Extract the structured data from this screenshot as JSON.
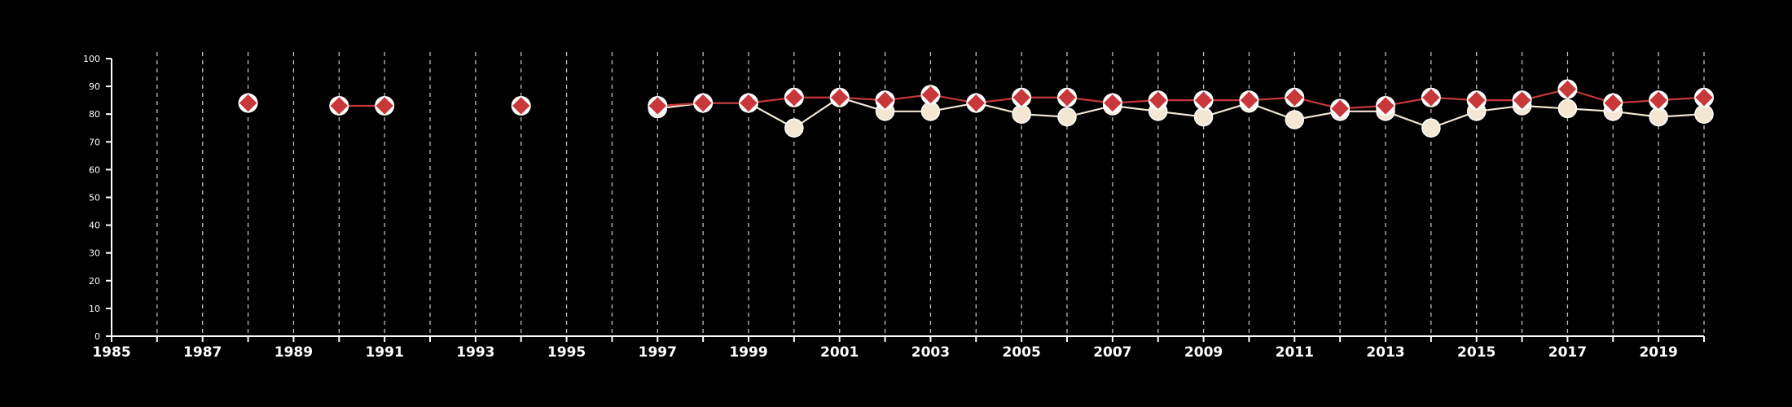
{
  "chart_data": {
    "type": "line",
    "title": "",
    "xlabel": "",
    "ylabel": "",
    "xlim": [
      1985,
      2020
    ],
    "ylim": [
      0,
      100
    ],
    "x_ticks": [
      1985,
      1987,
      1989,
      1991,
      1993,
      1995,
      1997,
      1999,
      2001,
      2003,
      2005,
      2007,
      2009,
      2011,
      2013,
      2015,
      2017,
      2019
    ],
    "y_ticks": [
      0,
      10,
      20,
      30,
      40,
      50,
      60,
      70,
      80,
      90,
      100
    ],
    "vertical_grid": "dashed, every year",
    "series": [
      {
        "color": "#f3e6d2",
        "marker": "circle",
        "points": [
          {
            "x": 1997,
            "y": 82
          },
          {
            "x": 1998,
            "y": 84
          },
          {
            "x": 1999,
            "y": 84
          },
          {
            "x": 2000,
            "y": 75
          },
          {
            "x": 2001,
            "y": 86
          },
          {
            "x": 2002,
            "y": 81
          },
          {
            "x": 2003,
            "y": 81
          },
          {
            "x": 2004,
            "y": 84
          },
          {
            "x": 2005,
            "y": 80
          },
          {
            "x": 2006,
            "y": 79
          },
          {
            "x": 2007,
            "y": 83
          },
          {
            "x": 2008,
            "y": 81
          },
          {
            "x": 2009,
            "y": 79
          },
          {
            "x": 2010,
            "y": 84
          },
          {
            "x": 2011,
            "y": 78
          },
          {
            "x": 2012,
            "y": 81
          },
          {
            "x": 2013,
            "y": 81
          },
          {
            "x": 2014,
            "y": 75
          },
          {
            "x": 2015,
            "y": 81
          },
          {
            "x": 2016,
            "y": 83
          },
          {
            "x": 2017,
            "y": 82
          },
          {
            "x": 2018,
            "y": 81
          },
          {
            "x": 2019,
            "y": 79
          },
          {
            "x": 2020,
            "y": 80
          }
        ]
      },
      {
        "color": "#c8373a",
        "marker": "diamond",
        "points": [
          {
            "x": 1988,
            "y": 84
          },
          {
            "x": 1990,
            "y": 83
          },
          {
            "x": 1991,
            "y": 83
          },
          {
            "x": 1994,
            "y": 83
          },
          {
            "x": 1997,
            "y": 83
          },
          {
            "x": 1998,
            "y": 84
          },
          {
            "x": 1999,
            "y": 84
          },
          {
            "x": 2000,
            "y": 86
          },
          {
            "x": 2001,
            "y": 86
          },
          {
            "x": 2002,
            "y": 85
          },
          {
            "x": 2003,
            "y": 87
          },
          {
            "x": 2004,
            "y": 84
          },
          {
            "x": 2005,
            "y": 86
          },
          {
            "x": 2006,
            "y": 86
          },
          {
            "x": 2007,
            "y": 84
          },
          {
            "x": 2008,
            "y": 85
          },
          {
            "x": 2009,
            "y": 85
          },
          {
            "x": 2010,
            "y": 85
          },
          {
            "x": 2011,
            "y": 86
          },
          {
            "x": 2012,
            "y": 82
          },
          {
            "x": 2013,
            "y": 83
          },
          {
            "x": 2014,
            "y": 86
          },
          {
            "x": 2015,
            "y": 85
          },
          {
            "x": 2016,
            "y": 85
          },
          {
            "x": 2017,
            "y": 89
          },
          {
            "x": 2018,
            "y": 84
          },
          {
            "x": 2019,
            "y": 85
          },
          {
            "x": 2020,
            "y": 86
          }
        ],
        "note_isolated_years": "1988 and 1994 appear as single points; 1990-1991 connected; continuous from 1997"
      }
    ]
  }
}
